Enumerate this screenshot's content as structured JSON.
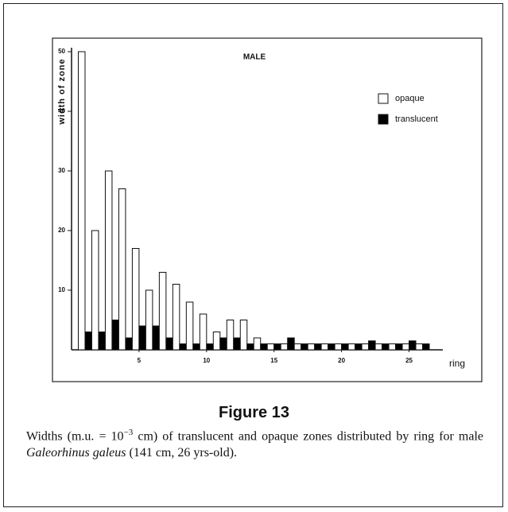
{
  "chart_data": {
    "type": "bar",
    "title": "MALE",
    "y_label": "width of zone",
    "x_label": "ring",
    "x": [
      1,
      2,
      3,
      4,
      5,
      6,
      7,
      8,
      9,
      10,
      11,
      12,
      13,
      14,
      15,
      16,
      17,
      18,
      19,
      20,
      21,
      22,
      23,
      24,
      25,
      26
    ],
    "series": [
      {
        "name": "opaque",
        "color": "#ffffff",
        "values": [
          50,
          20,
          30,
          27,
          17,
          10,
          13,
          11,
          8,
          6,
          3,
          5,
          5,
          2,
          1,
          1,
          1,
          1,
          1,
          1,
          1,
          1,
          1,
          1,
          1,
          1
        ]
      },
      {
        "name": "translucent",
        "color": "#000000",
        "values": [
          3,
          3,
          5,
          2,
          4,
          4,
          2,
          1,
          1,
          1,
          2,
          2,
          1,
          1,
          1,
          2,
          1,
          1,
          1,
          1,
          1,
          1.5,
          1,
          1,
          1.5,
          1
        ]
      }
    ],
    "xlim": [
      0,
      27.5
    ],
    "xticks": [
      5,
      10,
      15,
      20,
      25
    ],
    "ylim": [
      0,
      50
    ],
    "yticks": [
      10,
      20,
      30,
      40,
      50
    ],
    "grid": false,
    "legend": "upper right"
  },
  "figure": {
    "label": "Figure 13",
    "caption": [
      "Widths (m.u. = 10",
      "−3",
      " cm) of translucent and opaque zones distributed by ring for male ",
      "Galeorhinus galeus",
      " (141 cm, 26 yrs-old)."
    ]
  }
}
